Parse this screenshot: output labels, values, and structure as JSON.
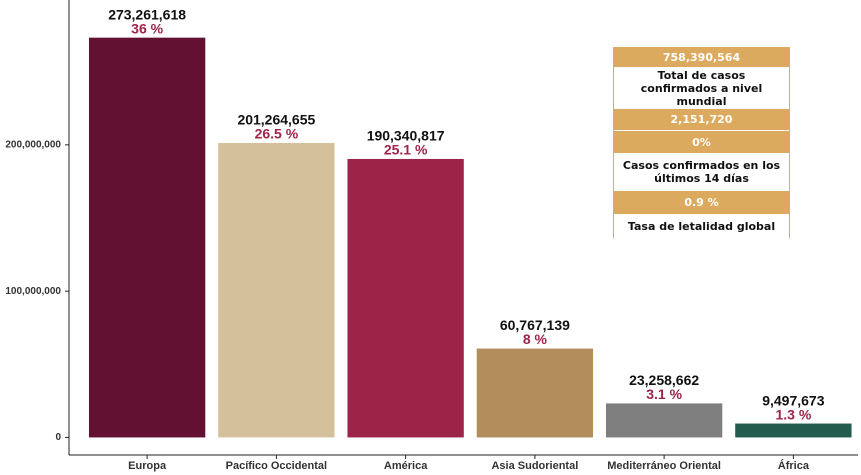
{
  "chart_data": {
    "type": "bar",
    "categories": [
      "Europa",
      "Pacífico Occidental",
      "América",
      "Asia Sudoriental",
      "Mediterráneo Oriental",
      "África"
    ],
    "values": [
      273261618,
      201264655,
      190340817,
      60767139,
      23258662,
      9497673
    ],
    "value_labels": [
      "273,261,618",
      "201,264,655",
      "190,340,817",
      "60,767,139",
      "23,258,662",
      "9,497,673"
    ],
    "shares": [
      36,
      26.5,
      25.1,
      8,
      3.1,
      1.3
    ],
    "share_labels": [
      "36 %",
      "26.5 %",
      "25.1 %",
      "8 %",
      "3.1 %",
      "1.3 %"
    ],
    "colors": [
      "#621132",
      "#d4c19c",
      "#9d2449",
      "#b38e5d",
      "#7f7f7f",
      "#235b4e"
    ],
    "ylim": [
      -12000000,
      299000000
    ],
    "yticks": [
      0,
      {
        "value": 100000000,
        "label": "100,000,000"
      },
      {
        "value": 200000000,
        "label": "200,000,000"
      }
    ],
    "grid": false
  },
  "info_box": [
    "758,390,564",
    "Total de casos confirmados a nivel mundial",
    "2,151,720",
    "0%",
    "Casos confirmados en los últimos 14 días",
    "0.9 %",
    "Tasa de letalidad global"
  ]
}
